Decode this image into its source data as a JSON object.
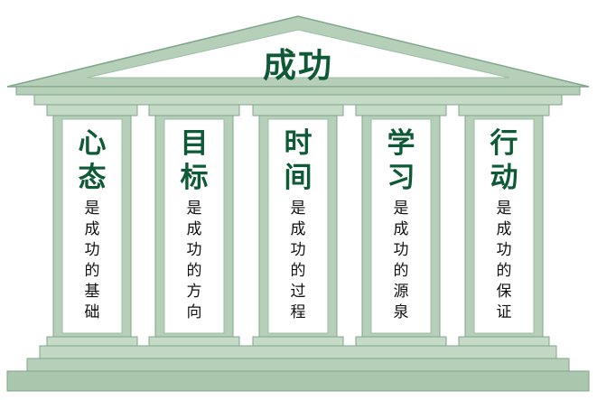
{
  "title": "成功",
  "pillars": [
    {
      "title": "心态",
      "desc": "是成功的基础"
    },
    {
      "title": "目标",
      "desc": "是成功的方向"
    },
    {
      "title": "时间",
      "desc": "是成功的过程"
    },
    {
      "title": "学习",
      "desc": "是成功的源泉"
    },
    {
      "title": "行动",
      "desc": "是成功的保证"
    }
  ],
  "colors": {
    "frame": "#b5cfb8",
    "edge": "#7fa68a",
    "column": "#ffffff",
    "title_text": "#0f5a36",
    "body_text": "#111111"
  }
}
